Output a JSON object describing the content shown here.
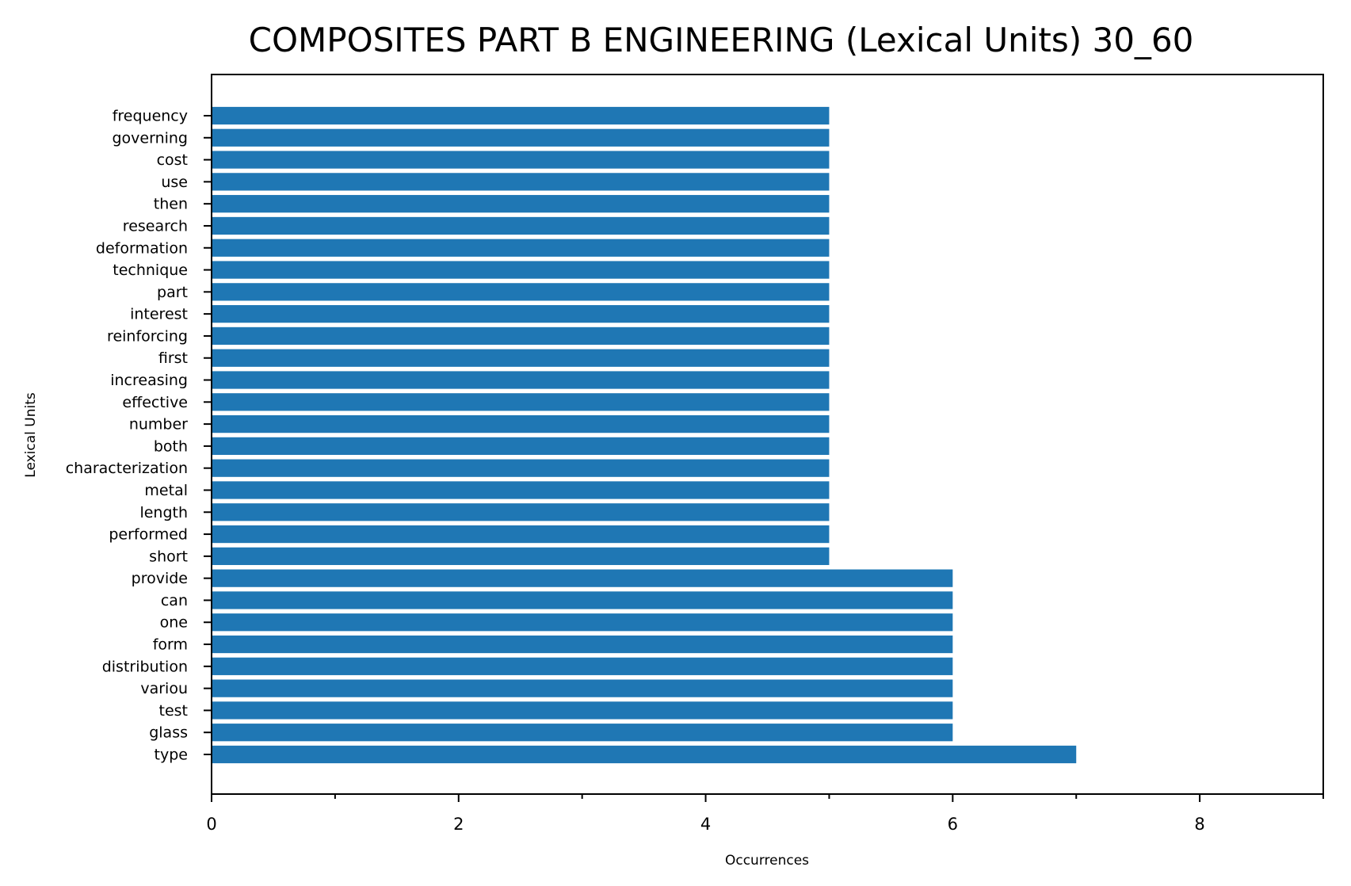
{
  "chart_data": {
    "type": "bar",
    "orientation": "horizontal",
    "title": "COMPOSITES PART B ENGINEERING (Lexical Units) 30_60",
    "xlabel": "Occurrences",
    "ylabel": "Lexical Units",
    "xlim": [
      0,
      9
    ],
    "xticks_major": [
      0,
      2,
      4,
      6,
      8
    ],
    "xticks_minor": [
      1,
      3,
      5,
      7,
      9
    ],
    "bar_color": "#1f77b4",
    "categories": [
      "type",
      "glass",
      "test",
      "variou",
      "distribution",
      "form",
      "one",
      "can",
      "provide",
      "short",
      "performed",
      "length",
      "metal",
      "characterization",
      "both",
      "number",
      "effective",
      "increasing",
      "first",
      "reinforcing",
      "interest",
      "part",
      "technique",
      "deformation",
      "research",
      "then",
      "use",
      "cost",
      "governing",
      "frequency"
    ],
    "values": [
      7,
      6,
      6,
      6,
      6,
      6,
      6,
      6,
      6,
      5,
      5,
      5,
      5,
      5,
      5,
      5,
      5,
      5,
      5,
      5,
      5,
      5,
      5,
      5,
      5,
      5,
      5,
      5,
      5,
      5
    ]
  }
}
